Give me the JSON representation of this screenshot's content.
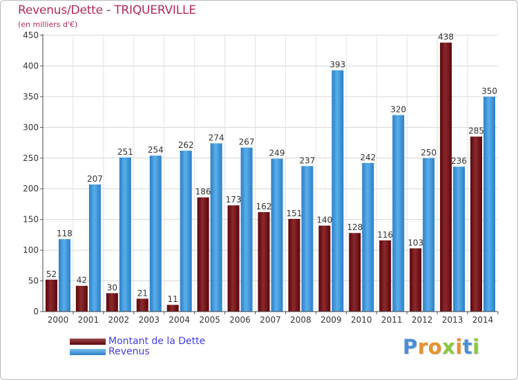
{
  "header": {
    "title": "Revenus/Dette - TRIQUERVILLE",
    "subtitle": "(en milliers d'€)"
  },
  "legend": {
    "items": [
      {
        "label": "Montant de la Dette",
        "color": "#6e0a12"
      },
      {
        "label": "Revenus",
        "color": "#3d96dc"
      }
    ]
  },
  "logo": {
    "letters": [
      "P",
      "r",
      "o",
      "x",
      "i",
      "t",
      "i"
    ],
    "colors": [
      "#4a8fd6",
      "#e8932e",
      "#e8932e",
      "#8cc83c",
      "#e8932e",
      "#4a8fd6",
      "#8cc83c"
    ]
  },
  "chart_data": {
    "type": "bar",
    "title": "Revenus/Dette - TRIQUERVILLE",
    "ylabel": "(en milliers d'€)",
    "xlabel": "",
    "ylim": [
      0,
      450
    ],
    "yticks": [
      0,
      50,
      100,
      150,
      200,
      250,
      300,
      350,
      400,
      450
    ],
    "grid": true,
    "legend_position": "bottom-left",
    "categories": [
      "2000",
      "2001",
      "2002",
      "2003",
      "2004",
      "2005",
      "2006",
      "2007",
      "2008",
      "2009",
      "2010",
      "2011",
      "2012",
      "2013",
      "2014"
    ],
    "series": [
      {
        "name": "Montant de la Dette",
        "color": "#6e0a12",
        "values": [
          52,
          42,
          30,
          21,
          11,
          186,
          173,
          162,
          151,
          140,
          128,
          116,
          103,
          438,
          285
        ]
      },
      {
        "name": "Revenus",
        "color": "#3d96dc",
        "values": [
          118,
          207,
          251,
          254,
          262,
          274,
          267,
          249,
          237,
          393,
          242,
          320,
          250,
          236,
          350
        ]
      }
    ]
  }
}
